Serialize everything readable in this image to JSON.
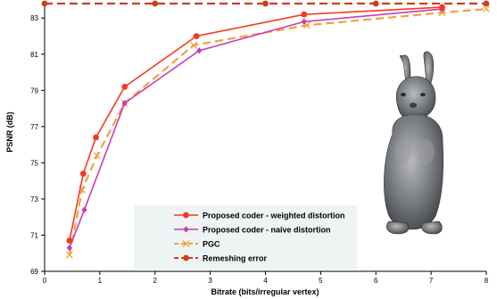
{
  "chart_data": {
    "type": "line",
    "title": "",
    "xlabel": "Bitrate (bits/irregular vertex)",
    "ylabel": "PSNR (dB)",
    "xlim": [
      0,
      8
    ],
    "ylim": [
      69,
      83.8
    ],
    "xticks": [
      "0",
      "1",
      "2",
      "3",
      "4",
      "5",
      "6",
      "7",
      "8"
    ],
    "yticks": [
      "69",
      "71",
      "73",
      "75",
      "77",
      "79",
      "81",
      "83"
    ],
    "grid": false,
    "legend_position": "bottom-center",
    "series": [
      {
        "name": "Proposed coder - weighted distortion",
        "color": "#f23a1e",
        "marker": "circle",
        "dash": "solid",
        "points": [
          [
            0.45,
            70.7
          ],
          [
            0.7,
            74.4
          ],
          [
            0.93,
            76.4
          ],
          [
            1.45,
            79.2
          ],
          [
            2.75,
            82.0
          ],
          [
            4.7,
            83.2
          ],
          [
            7.2,
            83.6
          ]
        ]
      },
      {
        "name": "Proposed coder - naive distortion",
        "color": "#c93cb5",
        "marker": "diamond",
        "dash": "solid",
        "points": [
          [
            0.45,
            70.3
          ],
          [
            0.72,
            72.4
          ],
          [
            1.45,
            78.3
          ],
          [
            2.8,
            81.2
          ],
          [
            4.7,
            82.8
          ],
          [
            7.2,
            83.5
          ]
        ]
      },
      {
        "name": "PGC",
        "color": "#f2a23a",
        "marker": "x",
        "dash": "dashed",
        "points": [
          [
            0.45,
            69.9
          ],
          [
            0.68,
            73.5
          ],
          [
            0.95,
            75.4
          ],
          [
            1.45,
            78.3
          ],
          [
            2.7,
            81.5
          ],
          [
            4.75,
            82.6
          ],
          [
            7.2,
            83.3
          ],
          [
            8.0,
            83.5
          ]
        ]
      },
      {
        "name": "Remeshing error",
        "color": "#c8401e",
        "marker": "circle",
        "dash": "dashed",
        "points": [
          [
            0,
            83.8
          ],
          [
            2,
            83.8
          ],
          [
            4,
            83.8
          ],
          [
            6,
            83.8
          ],
          [
            8,
            83.8
          ]
        ]
      }
    ]
  }
}
